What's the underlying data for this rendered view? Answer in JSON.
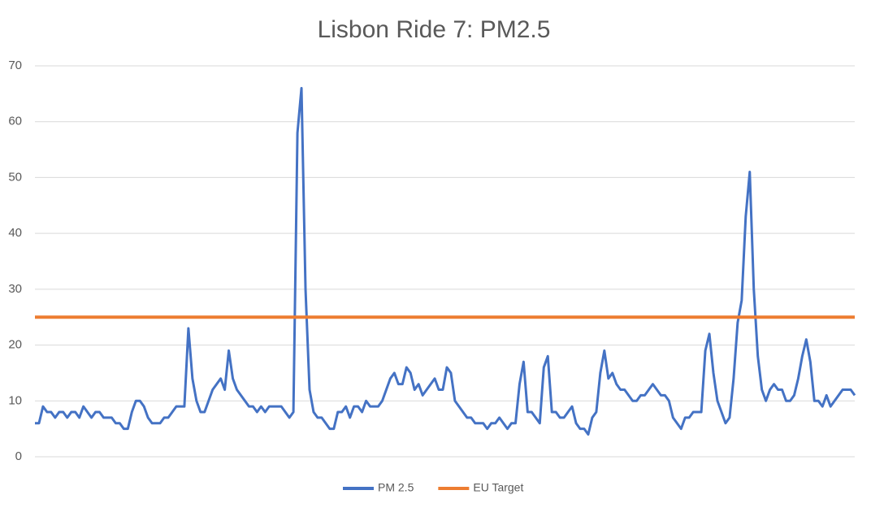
{
  "chart_data": {
    "type": "line",
    "title": "Lisbon Ride 7: PM2.5",
    "ylim": [
      0,
      70
    ],
    "yticks": [
      0,
      10,
      20,
      30,
      40,
      50,
      60,
      70
    ],
    "grid": true,
    "legend": "bottom",
    "series": [
      {
        "name": "PM 2.5",
        "color": "#4472c4",
        "values": [
          6,
          6,
          9,
          8,
          8,
          7,
          8,
          8,
          7,
          8,
          8,
          7,
          9,
          8,
          7,
          8,
          8,
          7,
          7,
          7,
          6,
          6,
          5,
          5,
          8,
          10,
          10,
          9,
          7,
          6,
          6,
          6,
          7,
          7,
          8,
          9,
          9,
          9,
          23,
          14,
          10,
          8,
          8,
          10,
          12,
          13,
          14,
          12,
          19,
          14,
          12,
          11,
          10,
          9,
          9,
          8,
          9,
          8,
          9,
          9,
          9,
          9,
          8,
          7,
          8,
          58,
          66,
          30,
          12,
          8,
          7,
          7,
          6,
          5,
          5,
          8,
          8,
          9,
          7,
          9,
          9,
          8,
          10,
          9,
          9,
          9,
          10,
          12,
          14,
          15,
          13,
          13,
          16,
          15,
          12,
          13,
          11,
          12,
          13,
          14,
          12,
          12,
          16,
          15,
          10,
          9,
          8,
          7,
          7,
          6,
          6,
          6,
          5,
          6,
          6,
          7,
          6,
          5,
          6,
          6,
          13,
          17,
          8,
          8,
          7,
          6,
          16,
          18,
          8,
          8,
          7,
          7,
          8,
          9,
          6,
          5,
          5,
          4,
          7,
          8,
          15,
          19,
          14,
          15,
          13,
          12,
          12,
          11,
          10,
          10,
          11,
          11,
          12,
          13,
          12,
          11,
          11,
          10,
          7,
          6,
          5,
          7,
          7,
          8,
          8,
          8,
          19,
          22,
          15,
          10,
          8,
          6,
          7,
          14,
          24,
          28,
          43,
          51,
          30,
          18,
          12,
          10,
          12,
          13,
          12,
          12,
          10,
          10,
          11,
          14,
          18,
          21,
          17,
          10,
          10,
          9,
          11,
          9,
          10,
          11,
          12,
          12,
          12,
          11
        ]
      },
      {
        "name": "EU Target",
        "color": "#ed7d31",
        "values": [
          25,
          25,
          25,
          25,
          25,
          25,
          25,
          25,
          25,
          25,
          25,
          25,
          25,
          25,
          25,
          25,
          25,
          25,
          25,
          25,
          25,
          25,
          25,
          25,
          25,
          25,
          25,
          25,
          25,
          25,
          25,
          25,
          25,
          25,
          25,
          25,
          25,
          25,
          25,
          25,
          25,
          25,
          25,
          25,
          25,
          25,
          25,
          25,
          25,
          25,
          25,
          25,
          25,
          25,
          25,
          25,
          25,
          25,
          25,
          25,
          25,
          25,
          25,
          25,
          25,
          25,
          25,
          25,
          25,
          25,
          25,
          25,
          25,
          25,
          25,
          25,
          25,
          25,
          25,
          25,
          25,
          25,
          25,
          25,
          25,
          25,
          25,
          25,
          25,
          25,
          25,
          25,
          25,
          25,
          25,
          25,
          25,
          25,
          25,
          25,
          25,
          25,
          25,
          25,
          25,
          25,
          25,
          25,
          25,
          25,
          25,
          25,
          25,
          25,
          25,
          25,
          25,
          25,
          25,
          25,
          25,
          25,
          25,
          25,
          25,
          25,
          25,
          25,
          25,
          25,
          25,
          25,
          25,
          25,
          25,
          25,
          25,
          25,
          25,
          25,
          25,
          25,
          25,
          25,
          25,
          25,
          25,
          25,
          25,
          25,
          25,
          25,
          25,
          25,
          25,
          25,
          25,
          25,
          25,
          25,
          25,
          25,
          25,
          25,
          25,
          25,
          25,
          25,
          25,
          25,
          25,
          25,
          25,
          25,
          25,
          25,
          25,
          25,
          25,
          25,
          25,
          25,
          25,
          25,
          25,
          25,
          25,
          25,
          25,
          25,
          25,
          25,
          25,
          25,
          25,
          25,
          25,
          25,
          25,
          25,
          25,
          25,
          25,
          25
        ]
      }
    ]
  }
}
